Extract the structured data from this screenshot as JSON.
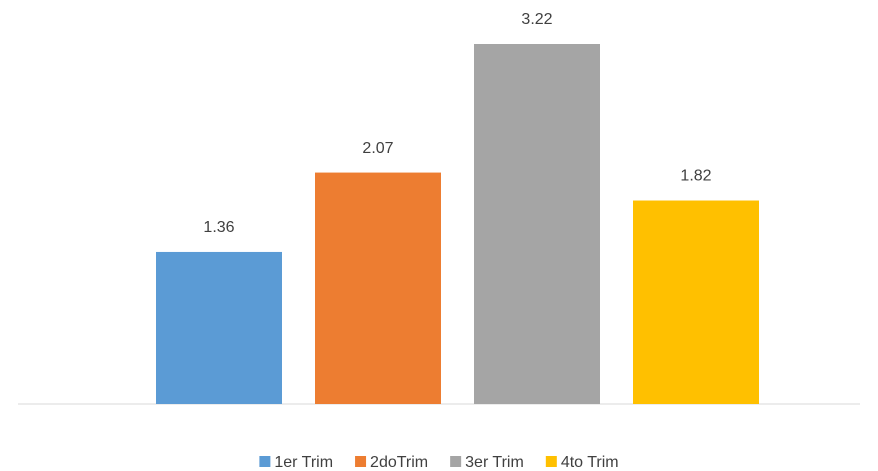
{
  "chart_data": {
    "type": "bar",
    "series": [
      {
        "name": "1er Trim",
        "color": "#5b9bd5",
        "values": [
          1.36
        ]
      },
      {
        "name": "2doTrim",
        "color": "#ed7d31",
        "values": [
          2.07
        ]
      },
      {
        "name": "3er Trim",
        "color": "#a5a5a5",
        "values": [
          3.22
        ]
      },
      {
        "name": "4to Trim",
        "color": "#ffc000",
        "values": [
          1.82
        ]
      }
    ],
    "legend": "bottom"
  }
}
